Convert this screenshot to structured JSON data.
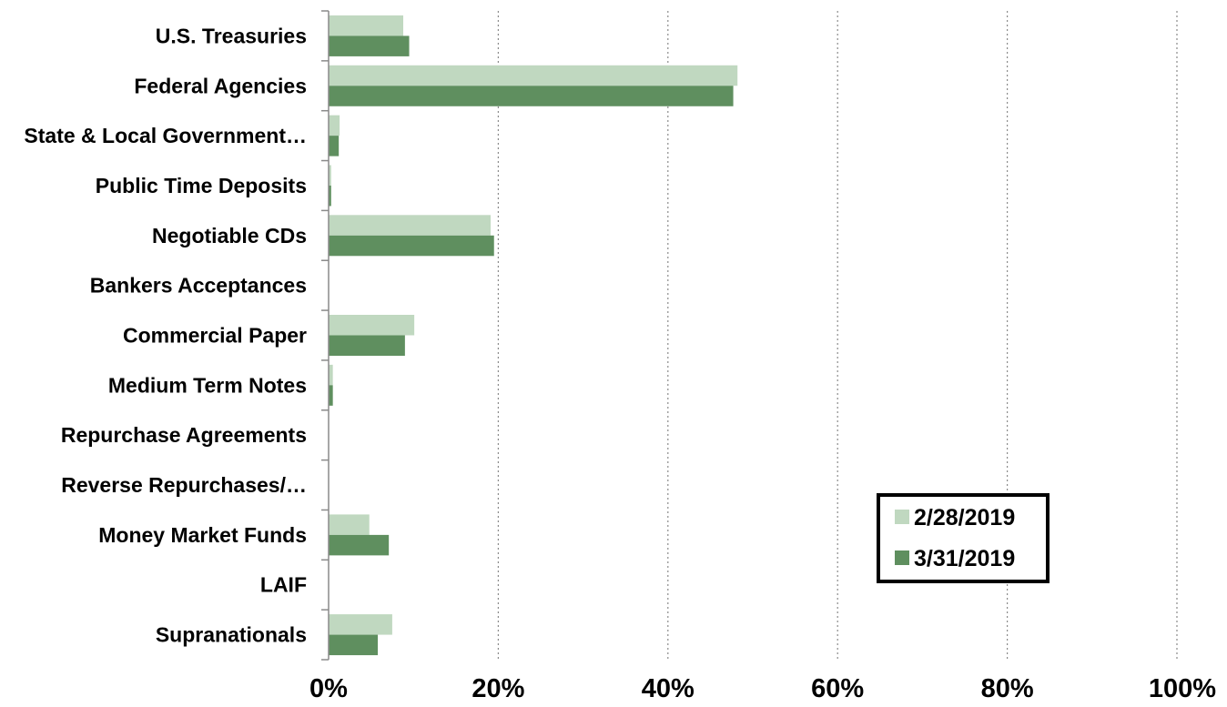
{
  "chart_data": {
    "type": "bar",
    "orientation": "horizontal",
    "categories": [
      "U.S. Treasuries",
      "Federal Agencies",
      "State & Local Government…",
      "Public Time Deposits",
      "Negotiable CDs",
      "Bankers Acceptances",
      "Commercial Paper",
      "Medium Term Notes",
      "Repurchase Agreements",
      "Reverse Repurchases/…",
      "Money Market Funds",
      "LAIF",
      "Supranationals"
    ],
    "series": [
      {
        "name": "2/28/2019",
        "color": "#c0d8c0",
        "values": [
          8.8,
          48.2,
          1.3,
          0.3,
          19.1,
          0,
          10.1,
          0.5,
          0,
          0,
          4.8,
          0,
          7.5
        ]
      },
      {
        "name": "3/31/2019",
        "color": "#5f8f5f",
        "values": [
          9.5,
          47.7,
          1.2,
          0.3,
          19.5,
          0,
          9.0,
          0.5,
          0,
          0,
          7.1,
          0,
          5.8
        ]
      }
    ],
    "xlim": [
      0,
      100
    ],
    "xticks": [
      "0%",
      "20%",
      "40%",
      "60%",
      "80%",
      "100%"
    ],
    "grid": "vertical dotted",
    "legend_position": "lower-right"
  }
}
